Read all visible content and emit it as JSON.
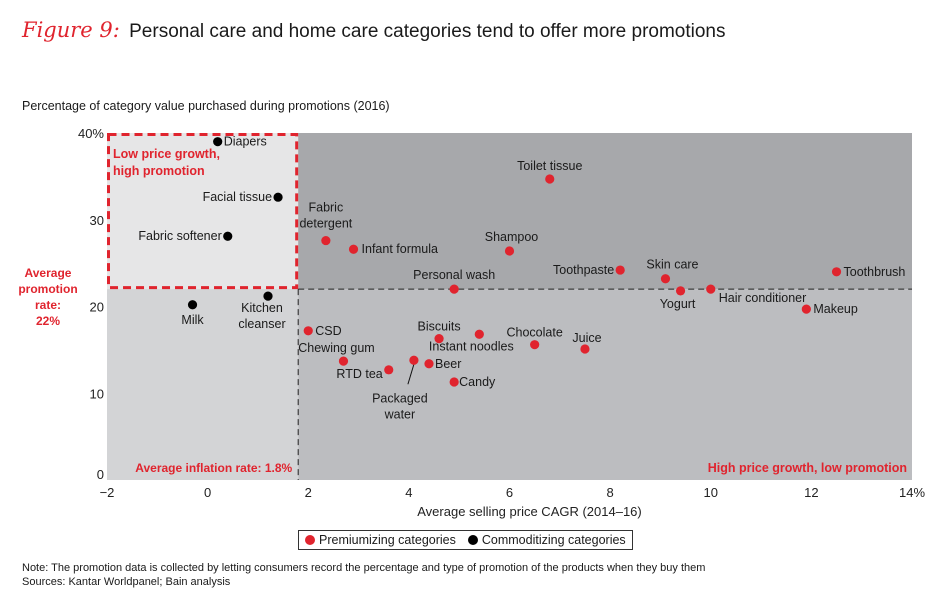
{
  "title": {
    "figure_label": "Figure 9:",
    "text": "Personal care and home care categories tend to offer more promotions"
  },
  "colors": {
    "premiumizing": "#e0242e",
    "commoditizing": "#000000",
    "accent": "#e0242e"
  },
  "legend": {
    "items": [
      {
        "label": "Premiumizing categories",
        "color": "#e0242e"
      },
      {
        "label": "Commoditizing categories",
        "color": "#000000"
      }
    ]
  },
  "notes": {
    "note": "Note: The promotion data is collected by letting consumers record the percentage and type of promotion of the products when they buy them",
    "sources": "Sources: Kantar Worldpanel; Bain analysis"
  },
  "chart_data": {
    "type": "scatter",
    "title": "Personal care and home care categories tend to offer more promotions",
    "xlabel": "Average selling price CAGR (2014–16)",
    "ylabel": "Percentage of category value purchased during promotions (2016)",
    "xlim": [
      -2,
      14
    ],
    "ylim": [
      0,
      40
    ],
    "x_ticks": [
      -2,
      0,
      2,
      4,
      6,
      8,
      10,
      12,
      14
    ],
    "x_tick_labels": [
      "−2",
      "0",
      "2",
      "4",
      "6",
      "8",
      "10",
      "12",
      "14%"
    ],
    "y_ticks": [
      0,
      10,
      20,
      30,
      40
    ],
    "y_tick_labels": [
      "0",
      "10",
      "20",
      "30",
      "40%"
    ],
    "grid": false,
    "legend_position": "bottom-center",
    "reference_lines": {
      "average_inflation_rate": 1.8,
      "average_promotion_rate": 22
    },
    "annotations": {
      "avg_promotion": [
        "Average",
        "promotion",
        "rate:",
        "22%"
      ],
      "avg_inflation": "Average inflation rate: 1.8%",
      "top_left_quadrant": [
        "Low price growth,",
        "high promotion"
      ],
      "bottom_right_quadrant": "High price growth, low promotion"
    },
    "series": [
      {
        "name": "Premiumizing categories",
        "color": "#e0242e",
        "points": [
          {
            "label": "Toilet tissue",
            "x": 6.8,
            "y": 34.7
          },
          {
            "label": "Fabric detergent",
            "x": 2.35,
            "y": 27.6
          },
          {
            "label": "Infant formula",
            "x": 2.9,
            "y": 26.6
          },
          {
            "label": "Shampoo",
            "x": 6.0,
            "y": 26.4
          },
          {
            "label": "Personal wash",
            "x": 4.9,
            "y": 22.0
          },
          {
            "label": "Toothpaste",
            "x": 8.2,
            "y": 24.2
          },
          {
            "label": "Skin care",
            "x": 9.1,
            "y": 23.2
          },
          {
            "label": "Yogurt",
            "x": 9.4,
            "y": 21.8
          },
          {
            "label": "Hair conditioner",
            "x": 10.0,
            "y": 22.0
          },
          {
            "label": "Toothbrush",
            "x": 12.5,
            "y": 24.0
          },
          {
            "label": "Makeup",
            "x": 11.9,
            "y": 19.7
          },
          {
            "label": "CSD",
            "x": 2.0,
            "y": 17.2
          },
          {
            "label": "Chewing gum",
            "x": 2.7,
            "y": 13.7
          },
          {
            "label": "RTD tea",
            "x": 3.6,
            "y": 12.7
          },
          {
            "label": "Packaged water",
            "x": 4.1,
            "y": 13.8
          },
          {
            "label": "Beer",
            "x": 4.4,
            "y": 13.4
          },
          {
            "label": "Candy",
            "x": 4.9,
            "y": 11.3
          },
          {
            "label": "Biscuits",
            "x": 4.6,
            "y": 16.3
          },
          {
            "label": "Instant noodles",
            "x": 5.4,
            "y": 16.8
          },
          {
            "label": "Chocolate",
            "x": 6.5,
            "y": 15.6
          },
          {
            "label": "Juice",
            "x": 7.5,
            "y": 15.1
          }
        ]
      },
      {
        "name": "Commoditizing categories",
        "color": "#000000",
        "points": [
          {
            "label": "Diapers",
            "x": 0.2,
            "y": 39.0
          },
          {
            "label": "Facial tissue",
            "x": 1.4,
            "y": 32.6
          },
          {
            "label": "Fabric softener",
            "x": 0.4,
            "y": 28.1
          },
          {
            "label": "Milk",
            "x": -0.3,
            "y": 20.2
          },
          {
            "label": "Kitchen cleanser",
            "x": 1.2,
            "y": 21.2
          }
        ]
      }
    ]
  }
}
